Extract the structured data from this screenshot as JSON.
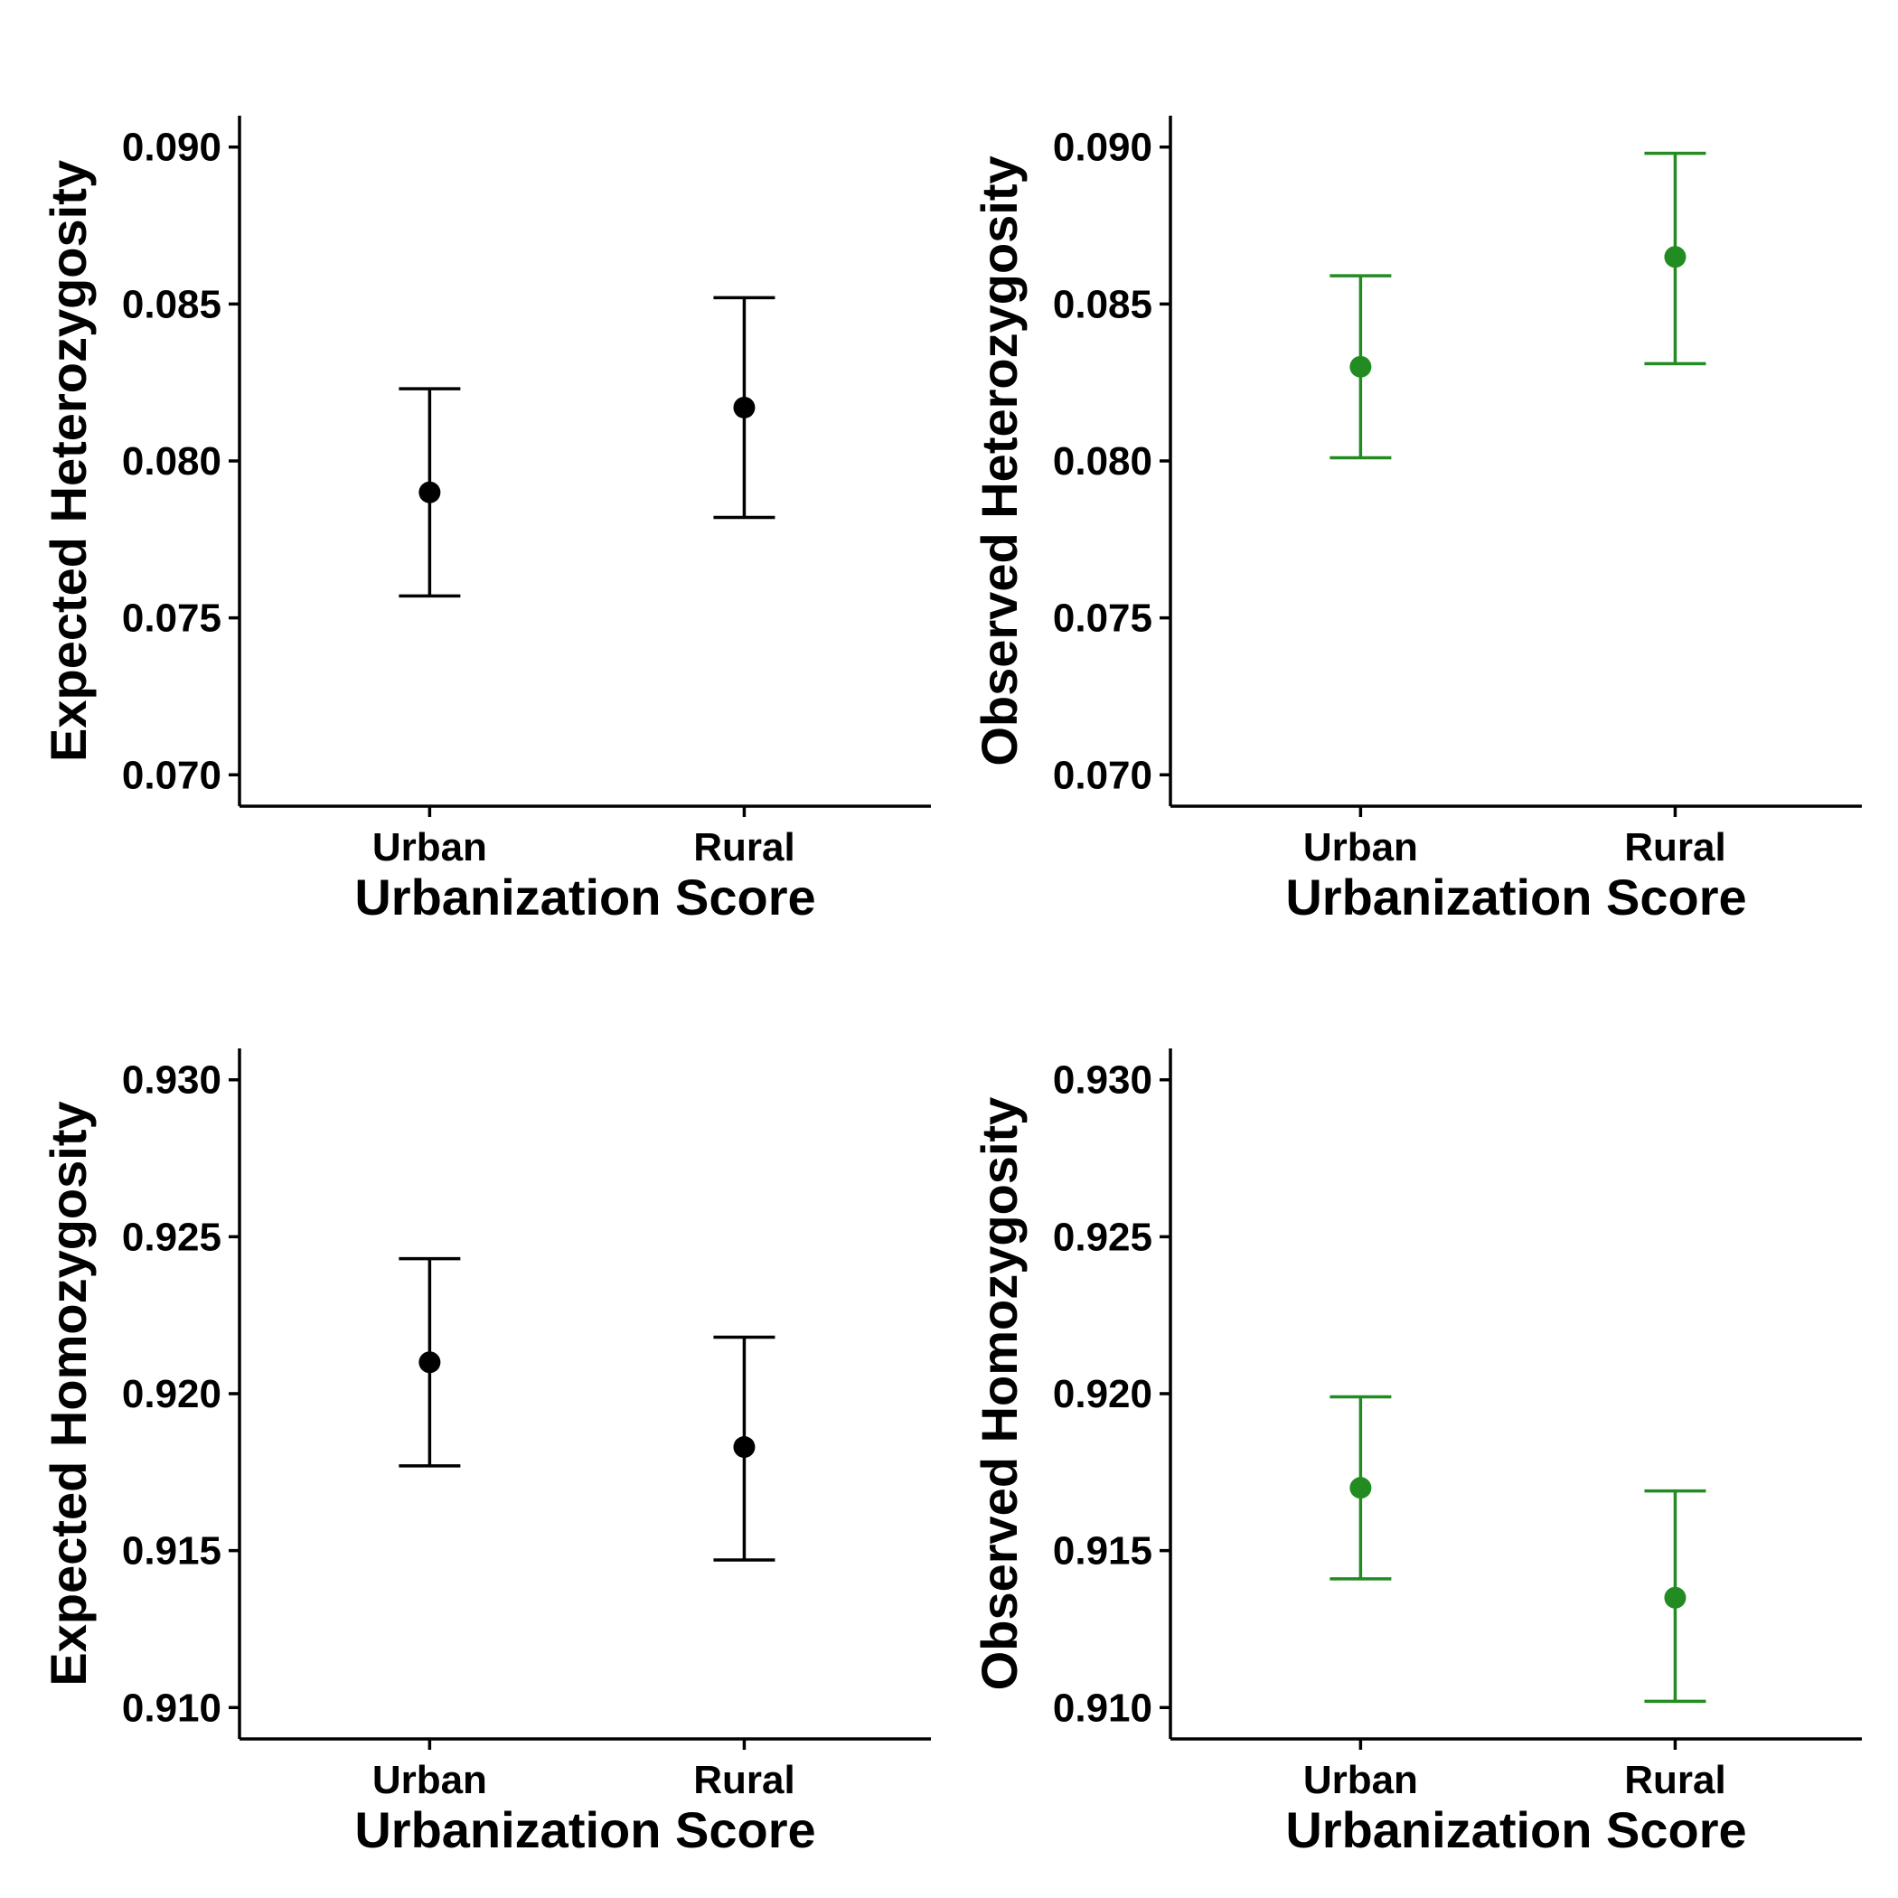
{
  "chart_data": [
    {
      "type": "scatter",
      "categories": [
        "Urban",
        "Rural"
      ],
      "series": [
        {
          "values": [
            0.079,
            0.0817
          ],
          "lower": [
            0.0757,
            0.0782
          ],
          "upper": [
            0.0823,
            0.0852
          ],
          "color": "#000000"
        }
      ],
      "xlabel": "Urbanization Score",
      "ylabel": "Expected Heterozygosity",
      "ylim": [
        0.069,
        0.091
      ],
      "yticks": [
        "0.070",
        "0.075",
        "0.080",
        "0.085",
        "0.090"
      ],
      "grid": false
    },
    {
      "type": "scatter",
      "categories": [
        "Urban",
        "Rural"
      ],
      "series": [
        {
          "values": [
            0.083,
            0.0865
          ],
          "lower": [
            0.0801,
            0.0831
          ],
          "upper": [
            0.0859,
            0.0898
          ],
          "color": "#228B22"
        }
      ],
      "xlabel": "Urbanization Score",
      "ylabel": "Observed Heterozygosity",
      "ylim": [
        0.069,
        0.091
      ],
      "yticks": [
        "0.070",
        "0.075",
        "0.080",
        "0.085",
        "0.090"
      ],
      "grid": false
    },
    {
      "type": "scatter",
      "categories": [
        "Urban",
        "Rural"
      ],
      "series": [
        {
          "values": [
            0.921,
            0.9183
          ],
          "lower": [
            0.9177,
            0.9147
          ],
          "upper": [
            0.9243,
            0.9218
          ],
          "color": "#000000"
        }
      ],
      "xlabel": "Urbanization Score",
      "ylabel": "Expected Homozygosity",
      "ylim": [
        0.909,
        0.931
      ],
      "yticks": [
        "0.910",
        "0.915",
        "0.920",
        "0.925",
        "0.930"
      ],
      "grid": false
    },
    {
      "type": "scatter",
      "categories": [
        "Urban",
        "Rural"
      ],
      "series": [
        {
          "values": [
            0.917,
            0.9135
          ],
          "lower": [
            0.9141,
            0.9102
          ],
          "upper": [
            0.9199,
            0.9169
          ],
          "color": "#228B22"
        }
      ],
      "xlabel": "Urbanization Score",
      "ylabel": "Observed Homozygosity",
      "ylim": [
        0.909,
        0.931
      ],
      "yticks": [
        "0.910",
        "0.915",
        "0.920",
        "0.925",
        "0.930"
      ],
      "grid": false
    }
  ]
}
